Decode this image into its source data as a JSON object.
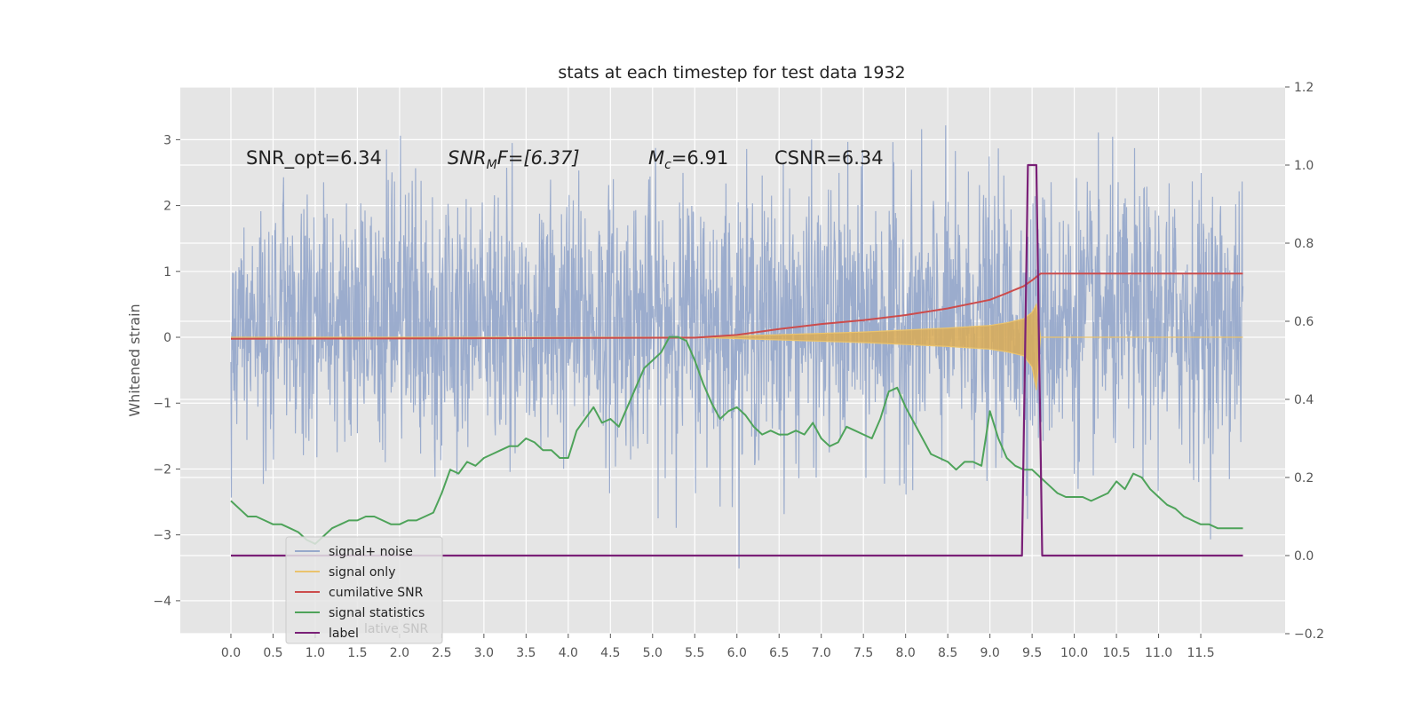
{
  "chart_data": {
    "type": "line",
    "title": "stats at each timestep for test data 1932",
    "xlabel": "",
    "ylabel": "Whitened strain",
    "y2label": "",
    "xlim": [
      -0.6,
      12.5
    ],
    "ylim": [
      -4.5,
      3.8
    ],
    "y2lim": [
      -0.2,
      1.2
    ],
    "x_ticks": [
      "0.0",
      "0.5",
      "1.0",
      "1.5",
      "2.0",
      "2.5",
      "3.0",
      "3.5",
      "4.0",
      "4.5",
      "5.0",
      "5.5",
      "6.0",
      "6.5",
      "7.0",
      "7.5",
      "8.0",
      "8.5",
      "9.0",
      "9.5",
      "10.0",
      "10.5",
      "11.0",
      "11.5"
    ],
    "y_ticks": [
      "3",
      "2",
      "1",
      "0",
      "−1",
      "−2",
      "−3",
      "−4"
    ],
    "y2_ticks": [
      "1.2",
      "1.0",
      "0.8",
      "0.6",
      "0.4",
      "0.2",
      "0.0",
      "−0.2"
    ],
    "grid": true,
    "legend_position": "lower-left",
    "annotations": {
      "snr_opt": "SNR_opt=6.34",
      "snr_mf_main": "SNR",
      "snr_mf_sub": "M",
      "snr_mf_rest": "F=[6.37]",
      "mc_main": "M",
      "mc_sub": "c",
      "mc_rest": "=6.91",
      "csnr": "CSNR=6.34"
    },
    "series": [
      {
        "name": "signal+ noise",
        "color": "#97a9cb",
        "description_values": "dense noise, approximately uniform amplitude envelope between about -3.5 and +3.3 over t = 0 to 12",
        "envelope": {
          "x": [
            0,
            12
          ],
          "y_mean": 0.25,
          "amplitude": 1.0
        }
      },
      {
        "name": "signal only",
        "color": "#eac36e",
        "x": [
          0,
          5.5,
          6.0,
          6.5,
          7.0,
          7.5,
          8.0,
          8.5,
          9.0,
          9.2,
          9.4,
          9.5,
          9.55,
          9.6,
          12.0
        ],
        "y_upper": [
          0,
          0,
          0.02,
          0.04,
          0.06,
          0.08,
          0.11,
          0.14,
          0.18,
          0.22,
          0.28,
          0.38,
          0.5,
          0,
          0
        ],
        "y_lower": [
          0,
          0,
          -0.02,
          -0.04,
          -0.06,
          -0.08,
          -0.11,
          -0.14,
          -0.18,
          -0.22,
          -0.28,
          -0.45,
          -0.8,
          0,
          0
        ]
      },
      {
        "name": "cumilative SNR",
        "color": "#cc4c4c",
        "axis": "right",
        "x": [
          0,
          2,
          4,
          5.5,
          6.0,
          6.5,
          7.0,
          7.5,
          8.0,
          8.5,
          9.0,
          9.2,
          9.4,
          9.5,
          9.6,
          12.0
        ],
        "y": [
          0.555,
          0.556,
          0.557,
          0.558,
          0.565,
          0.58,
          0.593,
          0.603,
          0.616,
          0.633,
          0.655,
          0.672,
          0.69,
          0.705,
          0.722,
          0.722
        ]
      },
      {
        "name": "signal statistics",
        "color": "#4ea35a",
        "axis": "right",
        "x": [
          0,
          0.1,
          0.2,
          0.3,
          0.4,
          0.5,
          0.6,
          0.7,
          0.8,
          0.9,
          1.0,
          1.1,
          1.2,
          1.3,
          1.4,
          1.5,
          1.6,
          1.7,
          1.8,
          1.9,
          2.0,
          2.1,
          2.2,
          2.3,
          2.4,
          2.5,
          2.6,
          2.7,
          2.8,
          2.9,
          3.0,
          3.1,
          3.2,
          3.3,
          3.4,
          3.5,
          3.6,
          3.7,
          3.8,
          3.9,
          4.0,
          4.1,
          4.2,
          4.3,
          4.4,
          4.5,
          4.6,
          4.7,
          4.8,
          4.9,
          5.0,
          5.1,
          5.2,
          5.3,
          5.4,
          5.5,
          5.6,
          5.7,
          5.8,
          5.9,
          6.0,
          6.1,
          6.2,
          6.3,
          6.4,
          6.5,
          6.6,
          6.7,
          6.8,
          6.9,
          7.0,
          7.1,
          7.2,
          7.3,
          7.4,
          7.5,
          7.6,
          7.7,
          7.8,
          7.9,
          8.0,
          8.1,
          8.2,
          8.3,
          8.4,
          8.5,
          8.6,
          8.7,
          8.8,
          8.9,
          9.0,
          9.1,
          9.2,
          9.3,
          9.4,
          9.5,
          9.6,
          9.7,
          9.8,
          9.9,
          10.0,
          10.1,
          10.2,
          10.3,
          10.4,
          10.5,
          10.6,
          10.7,
          10.8,
          10.9,
          11.0,
          11.1,
          11.2,
          11.3,
          11.4,
          11.5,
          11.6,
          11.7,
          11.8,
          11.9,
          12.0
        ],
        "y": [
          0.14,
          0.12,
          0.1,
          0.1,
          0.09,
          0.08,
          0.08,
          0.07,
          0.06,
          0.04,
          0.03,
          0.05,
          0.07,
          0.08,
          0.09,
          0.09,
          0.1,
          0.1,
          0.09,
          0.08,
          0.08,
          0.09,
          0.09,
          0.1,
          0.11,
          0.16,
          0.22,
          0.21,
          0.24,
          0.23,
          0.25,
          0.26,
          0.27,
          0.28,
          0.28,
          0.3,
          0.29,
          0.27,
          0.27,
          0.25,
          0.25,
          0.32,
          0.35,
          0.38,
          0.34,
          0.35,
          0.33,
          0.38,
          0.43,
          0.48,
          0.5,
          0.52,
          0.56,
          0.56,
          0.55,
          0.5,
          0.44,
          0.39,
          0.35,
          0.37,
          0.38,
          0.36,
          0.33,
          0.31,
          0.32,
          0.31,
          0.31,
          0.32,
          0.31,
          0.34,
          0.3,
          0.28,
          0.29,
          0.33,
          0.32,
          0.31,
          0.3,
          0.35,
          0.42,
          0.43,
          0.38,
          0.34,
          0.3,
          0.26,
          0.25,
          0.24,
          0.22,
          0.24,
          0.24,
          0.23,
          0.37,
          0.3,
          0.25,
          0.23,
          0.22,
          0.22,
          0.2,
          0.18,
          0.16,
          0.15,
          0.15,
          0.15,
          0.14,
          0.15,
          0.16,
          0.19,
          0.17,
          0.21,
          0.2,
          0.17,
          0.15,
          0.13,
          0.12,
          0.1,
          0.09,
          0.08,
          0.08,
          0.07,
          0.07,
          0.07,
          0.07
        ]
      },
      {
        "name": "label",
        "color": "#7a2077",
        "axis": "right",
        "x": [
          0,
          9.38,
          9.45,
          9.55,
          9.62,
          12.0
        ],
        "y": [
          0,
          0,
          1,
          1,
          0,
          0
        ]
      }
    ],
    "legend_ghost_text": "lative SNR"
  }
}
